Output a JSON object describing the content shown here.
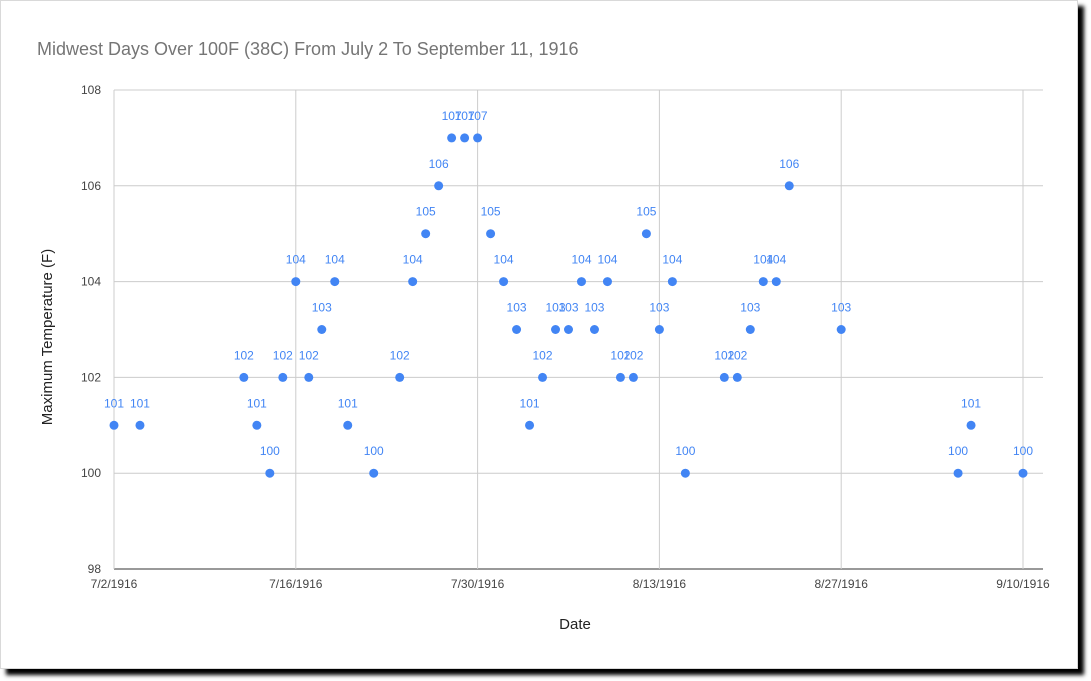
{
  "chart_data": {
    "type": "scatter",
    "title": "Midwest Days Over 100F (38C) From July 2 To September 11, 1916",
    "xlabel": "Date",
    "ylabel": "Maximum Temperature (F)",
    "xlim": [
      "1916-07-02",
      "1916-09-10"
    ],
    "ylim": [
      98,
      108
    ],
    "x_ticks": [
      "7/2/1916",
      "7/16/1916",
      "7/30/1916",
      "8/13/1916",
      "8/27/1916",
      "9/10/1916"
    ],
    "y_ticks": [
      98,
      100,
      102,
      104,
      106,
      108
    ],
    "grid": true,
    "legend": "none",
    "data_labels": true,
    "color": "#4285f4",
    "points": [
      {
        "x": "1916-07-02",
        "y": 101
      },
      {
        "x": "1916-07-04",
        "y": 101
      },
      {
        "x": "1916-07-12",
        "y": 102
      },
      {
        "x": "1916-07-13",
        "y": 101
      },
      {
        "x": "1916-07-14",
        "y": 100
      },
      {
        "x": "1916-07-15",
        "y": 102
      },
      {
        "x": "1916-07-16",
        "y": 104
      },
      {
        "x": "1916-07-17",
        "y": 102
      },
      {
        "x": "1916-07-18",
        "y": 103
      },
      {
        "x": "1916-07-19",
        "y": 104
      },
      {
        "x": "1916-07-20",
        "y": 101
      },
      {
        "x": "1916-07-22",
        "y": 100
      },
      {
        "x": "1916-07-24",
        "y": 102
      },
      {
        "x": "1916-07-25",
        "y": 104
      },
      {
        "x": "1916-07-26",
        "y": 105
      },
      {
        "x": "1916-07-27",
        "y": 106
      },
      {
        "x": "1916-07-28",
        "y": 107
      },
      {
        "x": "1916-07-29",
        "y": 107
      },
      {
        "x": "1916-07-30",
        "y": 107
      },
      {
        "x": "1916-07-31",
        "y": 105
      },
      {
        "x": "1916-08-01",
        "y": 104
      },
      {
        "x": "1916-08-02",
        "y": 103
      },
      {
        "x": "1916-08-03",
        "y": 101
      },
      {
        "x": "1916-08-04",
        "y": 102
      },
      {
        "x": "1916-08-05",
        "y": 103
      },
      {
        "x": "1916-08-06",
        "y": 103
      },
      {
        "x": "1916-08-07",
        "y": 104
      },
      {
        "x": "1916-08-08",
        "y": 103
      },
      {
        "x": "1916-08-09",
        "y": 104
      },
      {
        "x": "1916-08-10",
        "y": 102
      },
      {
        "x": "1916-08-11",
        "y": 102
      },
      {
        "x": "1916-08-12",
        "y": 105
      },
      {
        "x": "1916-08-13",
        "y": 103
      },
      {
        "x": "1916-08-14",
        "y": 104
      },
      {
        "x": "1916-08-15",
        "y": 100
      },
      {
        "x": "1916-08-18",
        "y": 102
      },
      {
        "x": "1916-08-19",
        "y": 102
      },
      {
        "x": "1916-08-20",
        "y": 103
      },
      {
        "x": "1916-08-21",
        "y": 104
      },
      {
        "x": "1916-08-22",
        "y": 104
      },
      {
        "x": "1916-08-23",
        "y": 106
      },
      {
        "x": "1916-08-27",
        "y": 103
      },
      {
        "x": "1916-09-05",
        "y": 100
      },
      {
        "x": "1916-09-06",
        "y": 101
      },
      {
        "x": "1916-09-10",
        "y": 100
      }
    ]
  }
}
